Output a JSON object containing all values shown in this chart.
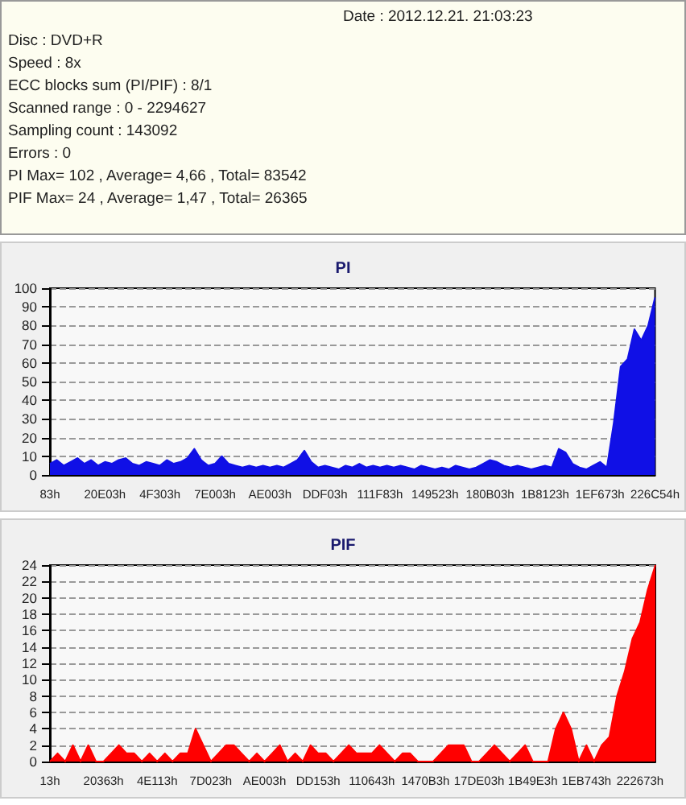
{
  "chart_data": [
    {
      "type": "other",
      "annotations": [
        "Date : 2012.12.21. 21:03:23",
        "Disc : DVD+R",
        "Speed : 8x",
        "ECC blocks sum (PI/PIF) : 8/1",
        "Scanned range : 0 - 2294627",
        "Sampling count : 143092",
        "Errors : 0",
        "PI Max= 102 , Average= 4,66 , Total= 83542",
        "PIF Max= 24 , Average= 1,47 , Total= 26365"
      ]
    },
    {
      "type": "area",
      "title": "PI",
      "color": "#1010e6",
      "marker": "none",
      "grid": "y",
      "ylim": [
        0,
        100
      ],
      "yticks": [
        0,
        10,
        20,
        30,
        40,
        50,
        60,
        70,
        80,
        90,
        100
      ],
      "categories": [
        "83h",
        null,
        null,
        null,
        null,
        null,
        null,
        null,
        "20E03h",
        null,
        null,
        null,
        null,
        null,
        null,
        null,
        "4F303h",
        null,
        null,
        null,
        null,
        null,
        null,
        null,
        "7E003h",
        null,
        null,
        null,
        null,
        null,
        null,
        null,
        "AE003h",
        null,
        null,
        null,
        null,
        null,
        null,
        null,
        "DDF03h",
        null,
        null,
        null,
        null,
        null,
        null,
        null,
        "111F83h",
        null,
        null,
        null,
        null,
        null,
        null,
        null,
        "149523h",
        null,
        null,
        null,
        null,
        null,
        null,
        null,
        "180B03h",
        null,
        null,
        null,
        null,
        null,
        null,
        null,
        "1B8123h",
        null,
        null,
        null,
        null,
        null,
        null,
        null,
        "1EF673h",
        null,
        null,
        null,
        null,
        null,
        null,
        null,
        "226C54h"
      ],
      "values": [
        6,
        8,
        5,
        7,
        9,
        6,
        8,
        5,
        7,
        6,
        8,
        9,
        6,
        5,
        7,
        6,
        5,
        8,
        6,
        7,
        9,
        14,
        8,
        5,
        6,
        10,
        6,
        5,
        4,
        5,
        4,
        5,
        4,
        5,
        4,
        6,
        8,
        13,
        7,
        4,
        5,
        4,
        3,
        5,
        4,
        6,
        4,
        5,
        4,
        5,
        4,
        5,
        4,
        3,
        5,
        4,
        3,
        4,
        3,
        5,
        4,
        3,
        4,
        6,
        8,
        7,
        5,
        4,
        5,
        4,
        3,
        4,
        5,
        4,
        14,
        12,
        6,
        4,
        3,
        5,
        7,
        4,
        28,
        58,
        62,
        78,
        72,
        80,
        95
      ]
    },
    {
      "type": "area",
      "title": "PIF",
      "color": "#ff0000",
      "marker": "none",
      "grid": "y",
      "ylim": [
        0,
        24
      ],
      "yticks": [
        0,
        2,
        4,
        6,
        8,
        10,
        12,
        14,
        16,
        18,
        20,
        22,
        24
      ],
      "categories": [
        "13h",
        null,
        null,
        null,
        null,
        null,
        null,
        "20363h",
        null,
        null,
        null,
        null,
        null,
        null,
        "4E113h",
        null,
        null,
        null,
        null,
        null,
        null,
        "7D023h",
        null,
        null,
        null,
        null,
        null,
        null,
        "AE003h",
        null,
        null,
        null,
        null,
        null,
        null,
        "DD153h",
        null,
        null,
        null,
        null,
        null,
        null,
        "110643h",
        null,
        null,
        null,
        null,
        null,
        null,
        "1470B3h",
        null,
        null,
        null,
        null,
        null,
        null,
        "17DE03h",
        null,
        null,
        null,
        null,
        null,
        null,
        "1B49E3h",
        null,
        null,
        null,
        null,
        null,
        null,
        "1EB743h",
        null,
        null,
        null,
        null,
        null,
        null,
        "222673h",
        null,
        null
      ],
      "values": [
        0,
        1,
        0,
        2,
        0,
        2,
        0,
        0,
        1,
        2,
        1,
        1,
        0,
        1,
        0,
        1,
        0,
        1,
        1,
        4,
        2,
        0,
        1,
        2,
        2,
        1,
        0,
        1,
        0,
        1,
        2,
        0,
        1,
        0,
        2,
        1,
        1,
        0,
        1,
        2,
        1,
        1,
        1,
        2,
        1,
        0,
        1,
        1,
        0,
        0,
        0,
        1,
        2,
        2,
        2,
        0,
        0,
        1,
        2,
        1,
        0,
        1,
        2,
        0,
        0,
        0,
        4,
        6,
        4,
        0,
        2,
        0,
        2,
        3,
        8,
        11,
        15,
        17,
        21,
        24
      ]
    }
  ]
}
